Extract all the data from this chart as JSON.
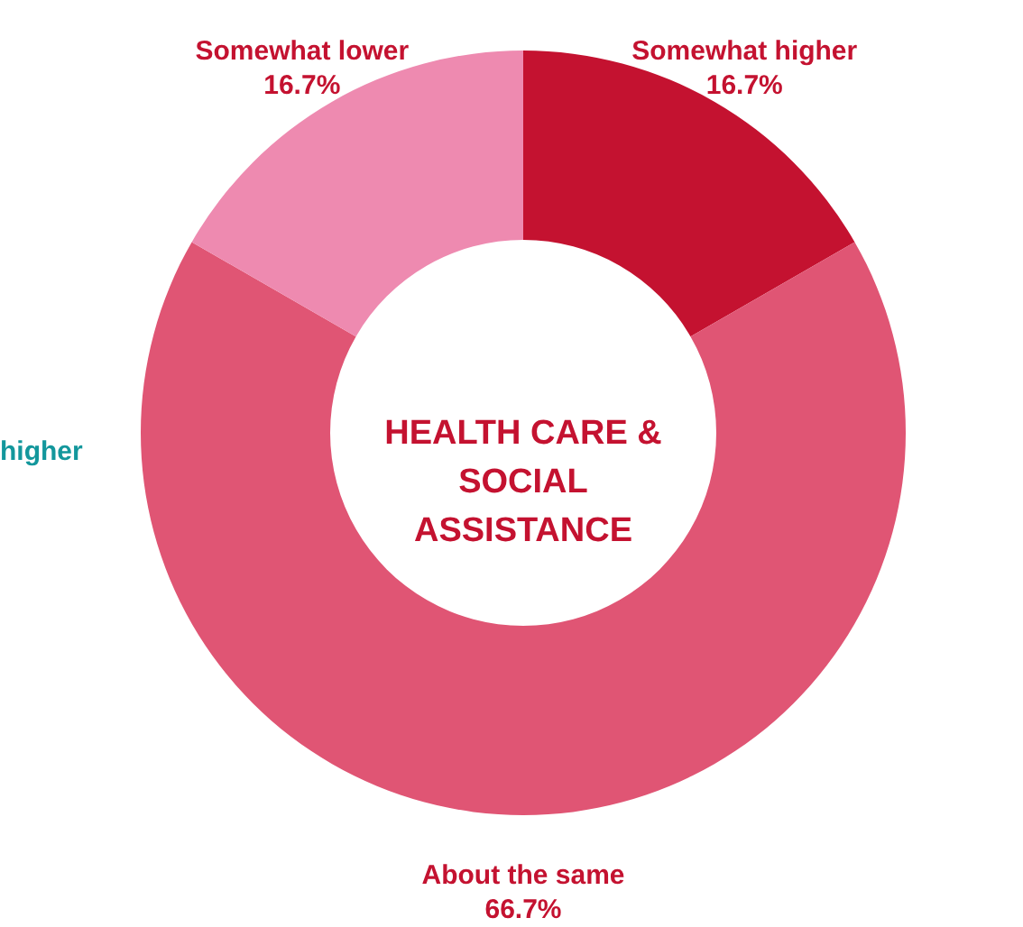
{
  "chart_data": {
    "type": "donut",
    "title": "HEALTH CARE &\nSOCIAL\nASSISTANCE",
    "categories": [
      "Somewhat higher",
      "About the same",
      "Somewhat lower"
    ],
    "values": [
      16.7,
      66.7,
      16.7
    ],
    "colors": [
      "#c41230",
      "#e05574",
      "#ee8ab0"
    ],
    "value_labels": [
      "16.7%",
      "66.7%",
      "16.7%"
    ],
    "annotations": [
      "higher"
    ]
  }
}
